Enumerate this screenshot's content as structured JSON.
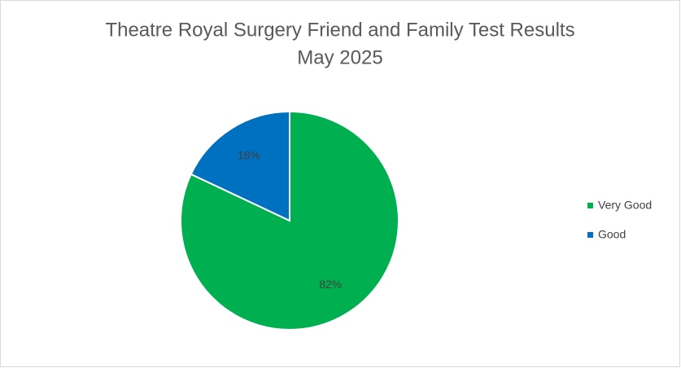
{
  "chart_data": {
    "type": "pie",
    "title": "Theatre Royal Surgery Friend and Family Test Results",
    "subtitle": "May 2025",
    "categories": [
      "Very Good",
      "Good"
    ],
    "values": [
      82,
      18
    ],
    "value_labels": [
      "82%",
      "18%"
    ],
    "colors": [
      "#00b050",
      "#0070c0"
    ],
    "legend": "right"
  }
}
